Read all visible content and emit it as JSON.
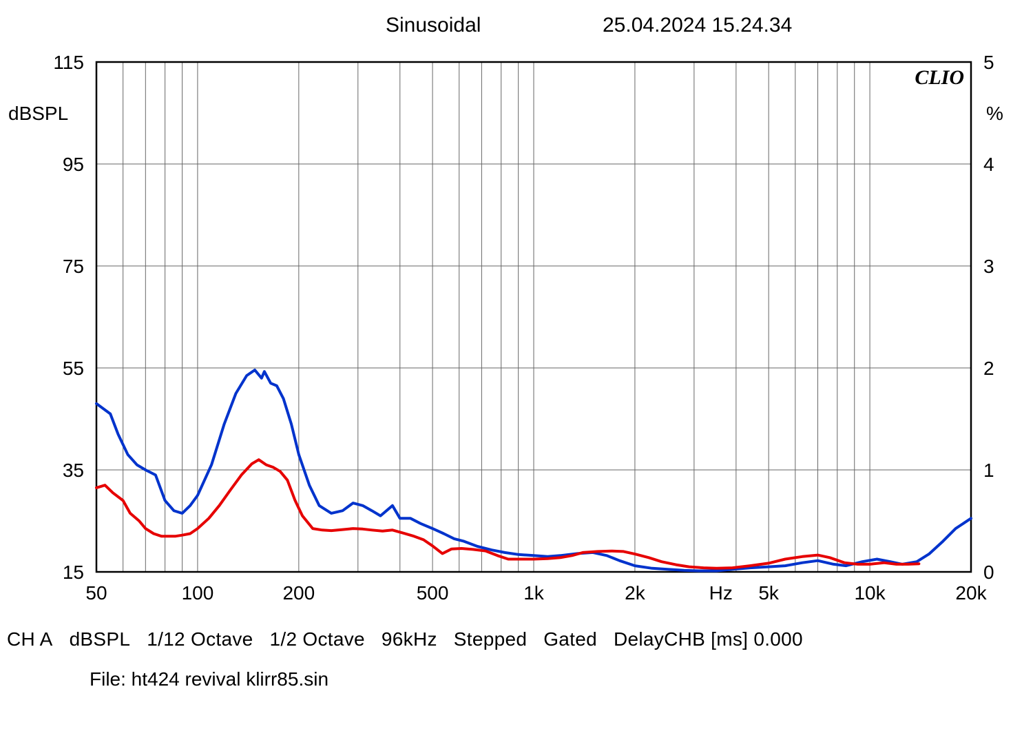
{
  "header": {
    "title": "Sinusoidal",
    "timestamp": "25.04.2024 15.24.34"
  },
  "watermark": "CLIO",
  "chart": {
    "type": "line",
    "x_scale": "log",
    "xlim": [
      50,
      20000
    ],
    "x_ticks_major": [
      100,
      1000,
      10000
    ],
    "x_ticks_minor": [
      50,
      60,
      70,
      80,
      90,
      100,
      200,
      300,
      400,
      500,
      600,
      700,
      800,
      900,
      1000,
      2000,
      3000,
      4000,
      5000,
      6000,
      7000,
      8000,
      9000,
      10000,
      20000
    ],
    "x_tick_labels": [
      {
        "v": 50,
        "t": "50"
      },
      {
        "v": 100,
        "t": "100"
      },
      {
        "v": 200,
        "t": "200"
      },
      {
        "v": 500,
        "t": "500"
      },
      {
        "v": 1000,
        "t": "1k"
      },
      {
        "v": 2000,
        "t": "2k"
      },
      {
        "v": 4000,
        "t": "Hz"
      },
      {
        "v": 5000,
        "t": "5k"
      },
      {
        "v": 10000,
        "t": "10k"
      },
      {
        "v": 20000,
        "t": "20k"
      }
    ],
    "y_left": {
      "unit": "dBSPL",
      "lim": [
        15,
        115
      ],
      "ticks": [
        15,
        35,
        55,
        75,
        95,
        115
      ]
    },
    "y_right": {
      "unit": "%",
      "lim": [
        0,
        5
      ],
      "ticks": [
        0,
        1,
        2,
        3,
        4,
        5
      ]
    },
    "background_color": "#ffffff",
    "grid_color": "#666666",
    "border_color": "#000000",
    "tick_fontsize": 28,
    "line_width": 4,
    "series": [
      {
        "name": "blue",
        "color": "#0033cc",
        "data": [
          [
            50,
            48
          ],
          [
            55,
            46
          ],
          [
            58,
            42
          ],
          [
            62,
            38
          ],
          [
            66,
            36
          ],
          [
            70,
            35
          ],
          [
            75,
            34
          ],
          [
            80,
            29
          ],
          [
            85,
            27
          ],
          [
            90,
            26.5
          ],
          [
            95,
            28
          ],
          [
            100,
            30
          ],
          [
            110,
            36
          ],
          [
            120,
            44
          ],
          [
            130,
            50
          ],
          [
            140,
            53.5
          ],
          [
            148,
            54.6
          ],
          [
            155,
            53
          ],
          [
            158,
            54.3
          ],
          [
            165,
            52
          ],
          [
            172,
            51.5
          ],
          [
            180,
            49
          ],
          [
            190,
            44
          ],
          [
            200,
            38
          ],
          [
            215,
            32
          ],
          [
            230,
            28
          ],
          [
            250,
            26.5
          ],
          [
            270,
            27
          ],
          [
            290,
            28.5
          ],
          [
            310,
            28
          ],
          [
            330,
            27
          ],
          [
            350,
            26
          ],
          [
            380,
            28
          ],
          [
            400,
            25.5
          ],
          [
            430,
            25.5
          ],
          [
            460,
            24.5
          ],
          [
            500,
            23.5
          ],
          [
            540,
            22.5
          ],
          [
            580,
            21.5
          ],
          [
            620,
            21
          ],
          [
            680,
            20
          ],
          [
            750,
            19.3
          ],
          [
            820,
            18.8
          ],
          [
            900,
            18.4
          ],
          [
            1000,
            18.2
          ],
          [
            1100,
            18
          ],
          [
            1200,
            18.2
          ],
          [
            1350,
            18.6
          ],
          [
            1500,
            18.8
          ],
          [
            1650,
            18.2
          ],
          [
            1800,
            17.2
          ],
          [
            2000,
            16.2
          ],
          [
            2250,
            15.7
          ],
          [
            2500,
            15.5
          ],
          [
            2800,
            15.3
          ],
          [
            3100,
            15.2
          ],
          [
            3500,
            15.2
          ],
          [
            3900,
            15.5
          ],
          [
            4400,
            15.8
          ],
          [
            5000,
            16
          ],
          [
            5600,
            16.2
          ],
          [
            6300,
            16.8
          ],
          [
            7000,
            17.2
          ],
          [
            7800,
            16.5
          ],
          [
            8500,
            16.2
          ],
          [
            9500,
            17
          ],
          [
            10500,
            17.5
          ],
          [
            11500,
            17
          ],
          [
            12500,
            16.5
          ],
          [
            13800,
            17
          ],
          [
            15000,
            18.5
          ],
          [
            16500,
            21
          ],
          [
            18000,
            23.5
          ],
          [
            20000,
            25.5
          ]
        ]
      },
      {
        "name": "red",
        "color": "#e60000",
        "data": [
          [
            50,
            31.5
          ],
          [
            53,
            32
          ],
          [
            56,
            30.5
          ],
          [
            60,
            29
          ],
          [
            63,
            26.5
          ],
          [
            67,
            25
          ],
          [
            70,
            23.5
          ],
          [
            74,
            22.5
          ],
          [
            78,
            22
          ],
          [
            82,
            22
          ],
          [
            86,
            22
          ],
          [
            90,
            22.2
          ],
          [
            95,
            22.5
          ],
          [
            100,
            23.5
          ],
          [
            108,
            25.5
          ],
          [
            116,
            28
          ],
          [
            125,
            31
          ],
          [
            135,
            34
          ],
          [
            145,
            36.2
          ],
          [
            152,
            37
          ],
          [
            160,
            36
          ],
          [
            168,
            35.5
          ],
          [
            176,
            34.7
          ],
          [
            185,
            33
          ],
          [
            195,
            29
          ],
          [
            205,
            26
          ],
          [
            220,
            23.5
          ],
          [
            235,
            23.2
          ],
          [
            250,
            23.1
          ],
          [
            270,
            23.3
          ],
          [
            290,
            23.5
          ],
          [
            310,
            23.4
          ],
          [
            330,
            23.2
          ],
          [
            355,
            23
          ],
          [
            380,
            23.2
          ],
          [
            410,
            22.6
          ],
          [
            440,
            22
          ],
          [
            470,
            21.3
          ],
          [
            500,
            20.1
          ],
          [
            535,
            18.6
          ],
          [
            570,
            19.5
          ],
          [
            610,
            19.6
          ],
          [
            660,
            19.4
          ],
          [
            720,
            19.1
          ],
          [
            780,
            18.2
          ],
          [
            840,
            17.5
          ],
          [
            910,
            17.5
          ],
          [
            1000,
            17.5
          ],
          [
            1100,
            17.6
          ],
          [
            1200,
            17.8
          ],
          [
            1300,
            18.2
          ],
          [
            1400,
            18.8
          ],
          [
            1550,
            19
          ],
          [
            1700,
            19.1
          ],
          [
            1850,
            19
          ],
          [
            2000,
            18.5
          ],
          [
            2200,
            17.8
          ],
          [
            2400,
            17
          ],
          [
            2650,
            16.4
          ],
          [
            2900,
            16
          ],
          [
            3200,
            15.8
          ],
          [
            3500,
            15.7
          ],
          [
            3900,
            15.8
          ],
          [
            4400,
            16.2
          ],
          [
            5000,
            16.7
          ],
          [
            5600,
            17.5
          ],
          [
            6300,
            18
          ],
          [
            7000,
            18.3
          ],
          [
            7600,
            17.8
          ],
          [
            8400,
            16.8
          ],
          [
            9200,
            16.5
          ],
          [
            10000,
            16.5
          ],
          [
            11000,
            16.8
          ],
          [
            12000,
            16.5
          ],
          [
            13000,
            16.5
          ],
          [
            14000,
            16.6
          ]
        ]
      }
    ]
  },
  "footer": {
    "items": [
      "CH A",
      "dBSPL",
      "1/12 Octave",
      "1/2 Octave",
      "96kHz",
      "Stepped",
      "Gated",
      "DelayCHB [ms] 0.000"
    ],
    "file_label": "File: ht424 revival klirr85.sin"
  }
}
